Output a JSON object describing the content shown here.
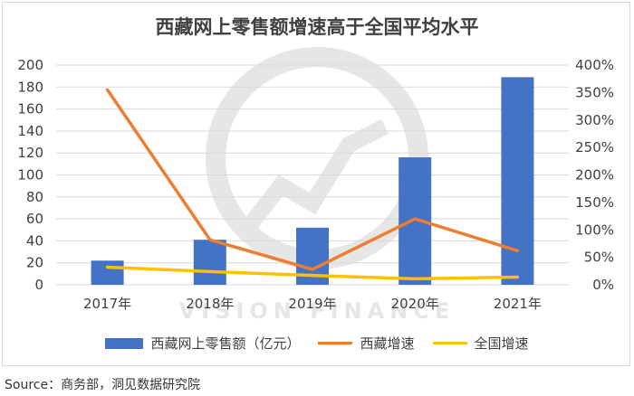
{
  "title": "西藏网上零售额增速高于全国平均水平",
  "source": "Source：商务部，洞见数据研究院",
  "colors": {
    "bar": "#4472c4",
    "tibet_growth": "#ed7d31",
    "national_growth": "#ffc000",
    "grid": "#d9d9d9",
    "watermark": "#e6e6e6"
  },
  "watermark": "VISION FINANCE",
  "chart_data": {
    "type": "bar",
    "categories": [
      "2017年",
      "2018年",
      "2019年",
      "2020年",
      "2021年"
    ],
    "series": [
      {
        "name": "西藏网上零售额（亿元）",
        "type": "bar",
        "axis": "left",
        "values": [
          22,
          41,
          52,
          116,
          189
        ]
      },
      {
        "name": "西藏增速",
        "type": "line",
        "axis": "right",
        "values": [
          355,
          82,
          28,
          120,
          62
        ]
      },
      {
        "name": "全国增速",
        "type": "line",
        "axis": "right",
        "values": [
          32,
          24,
          17,
          11,
          14
        ]
      }
    ],
    "y_left": {
      "min": 0,
      "max": 200,
      "step": 20,
      "ticks": [
        "0",
        "20",
        "40",
        "60",
        "80",
        "100",
        "120",
        "140",
        "160",
        "180",
        "200"
      ]
    },
    "y_right": {
      "min": 0,
      "max": 400,
      "step": 50,
      "ticks": [
        "0%",
        "50%",
        "100%",
        "150%",
        "200%",
        "250%",
        "300%",
        "350%",
        "400%"
      ]
    },
    "grid": true,
    "legend_position": "bottom"
  }
}
